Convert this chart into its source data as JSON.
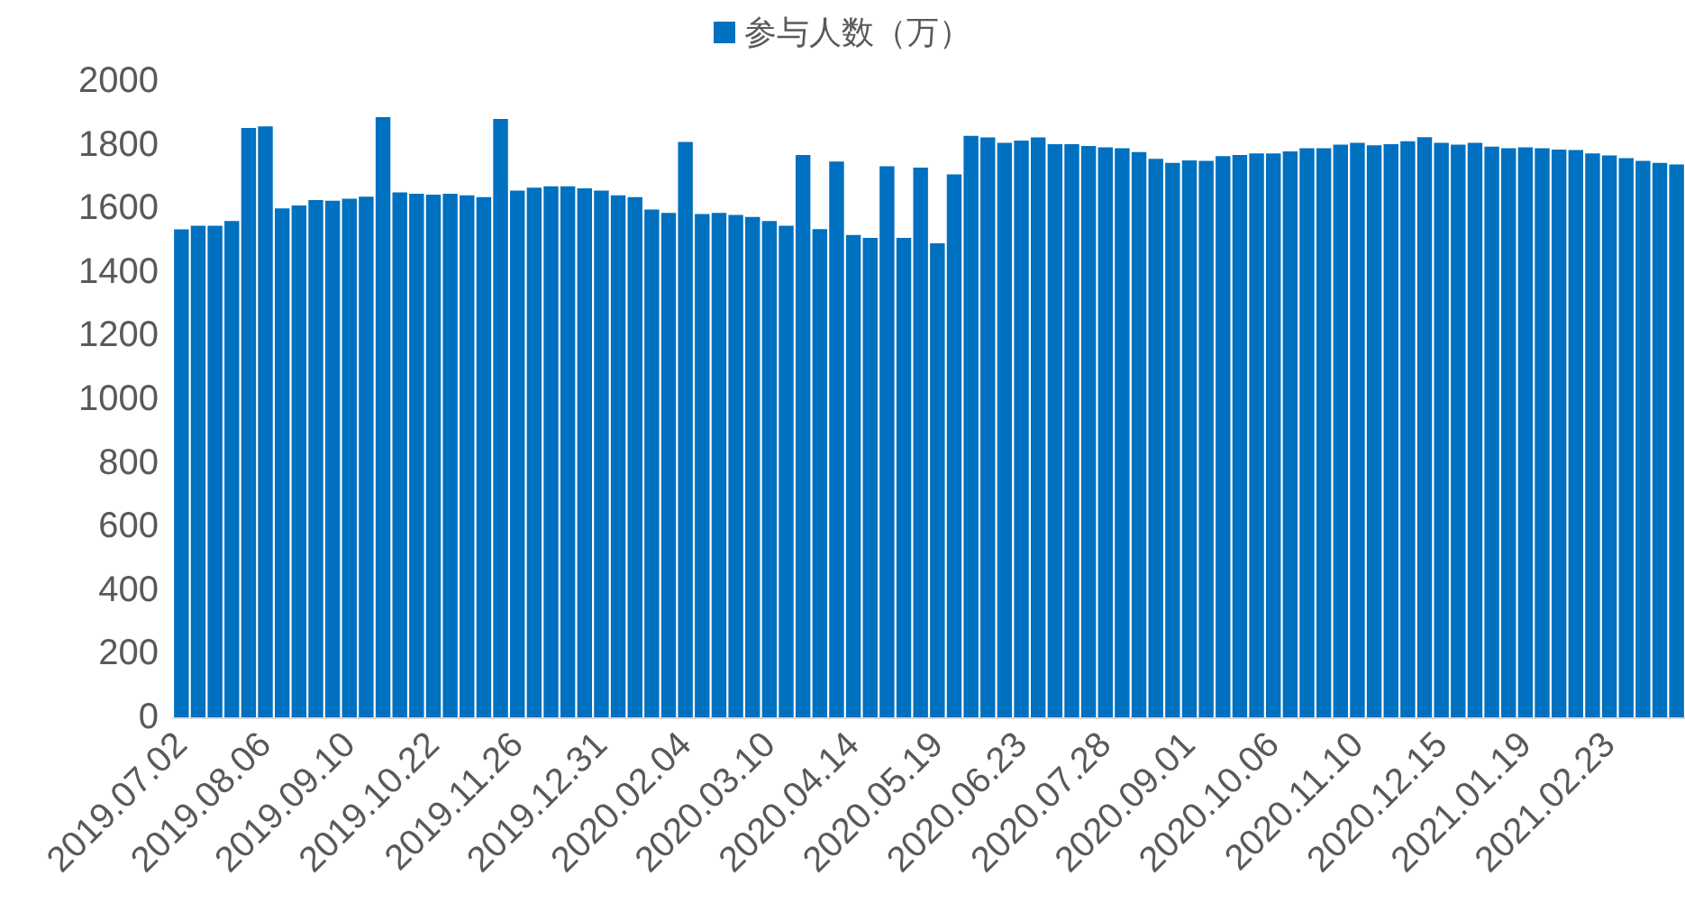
{
  "chart_data": {
    "type": "bar",
    "categories": [
      "2019.07.02",
      null,
      null,
      null,
      null,
      "2019.08.06",
      null,
      null,
      null,
      null,
      "2019.09.10",
      null,
      null,
      null,
      null,
      "2019.10.22",
      null,
      null,
      null,
      null,
      "2019.11.26",
      null,
      null,
      null,
      null,
      "2019.12.31",
      null,
      null,
      null,
      null,
      "2020.02.04",
      null,
      null,
      null,
      null,
      "2020.03.10",
      null,
      null,
      null,
      null,
      "2020.04.14",
      null,
      null,
      null,
      null,
      "2020.05.19",
      null,
      null,
      null,
      null,
      "2020.06.23",
      null,
      null,
      null,
      null,
      "2020.07.28",
      null,
      null,
      null,
      null,
      "2020.09.01",
      null,
      null,
      null,
      null,
      "2020.10.06",
      null,
      null,
      null,
      null,
      "2020.11.10",
      null,
      null,
      null,
      null,
      "2020.12.15",
      null,
      null,
      null,
      null,
      "2021.01.19",
      null,
      null,
      null,
      null,
      "2021.02.23",
      null,
      null,
      null,
      null
    ],
    "series": [
      {
        "name": "参与人数（万）",
        "color": "#0070c0",
        "values": [
          1534,
          1545,
          1545,
          1560,
          1853,
          1858,
          1600,
          1609,
          1626,
          1624,
          1630,
          1637,
          1887,
          1650,
          1646,
          1643,
          1646,
          1641,
          1635,
          1881,
          1656,
          1665,
          1669,
          1669,
          1663,
          1656,
          1641,
          1635,
          1596,
          1586,
          1809,
          1582,
          1586,
          1579,
          1573,
          1560,
          1545,
          1768,
          1535,
          1747,
          1516,
          1507,
          1732,
          1507,
          1728,
          1490,
          1707,
          1828,
          1823,
          1806,
          1813,
          1823,
          1802,
          1802,
          1796,
          1792,
          1789,
          1777,
          1756,
          1743,
          1751,
          1749,
          1764,
          1768,
          1773,
          1773,
          1779,
          1789,
          1789,
          1800,
          1806,
          1798,
          1802,
          1811,
          1824,
          1806,
          1800,
          1806,
          1794,
          1789,
          1792,
          1789,
          1785,
          1783,
          1773,
          1766,
          1758,
          1749,
          1743,
          1738
        ]
      }
    ],
    "ylim": [
      0,
      2000
    ],
    "yticks": [
      0,
      200,
      400,
      600,
      800,
      1000,
      1200,
      1400,
      1600,
      1800,
      2000
    ],
    "grid": false,
    "legend": "top"
  }
}
